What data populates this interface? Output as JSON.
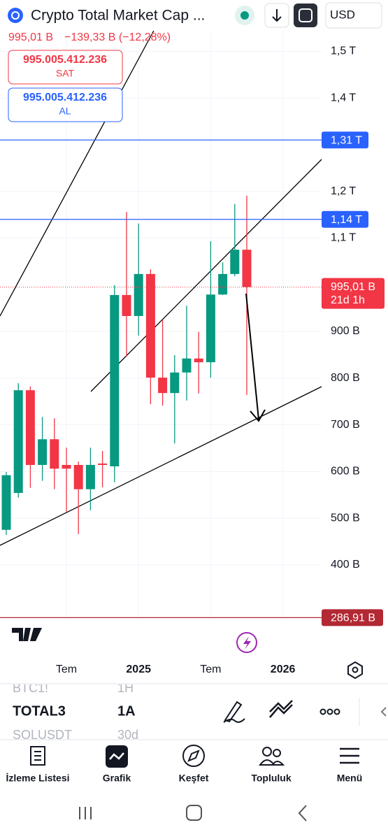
{
  "header": {
    "title": "Crypto Total Market Cap ...",
    "price": "995,01 B",
    "change": "−139,33 B (−12,28%)",
    "sell_price": "995.005.412.236",
    "sell_label": "SAT",
    "buy_price": "995.005.412.236",
    "buy_label": "AL",
    "currency": "USD"
  },
  "chart_data": {
    "type": "candlestick",
    "categories": [
      null,
      null,
      null,
      null,
      null,
      "Tem",
      null,
      null,
      null,
      null,
      null,
      "2025",
      null,
      null,
      null,
      null,
      null,
      "Tem",
      null,
      null,
      null,
      null,
      null,
      "2026"
    ],
    "open": [
      475,
      554,
      774,
      614,
      669,
      614,
      614,
      562,
      617,
      611,
      978,
      933,
      1023,
      801,
      768,
      812,
      842,
      834,
      979,
      1023,
      1075,
      null,
      null,
      null
    ],
    "high": [
      599,
      789,
      782,
      717,
      714,
      651,
      621,
      651,
      644,
      999,
      1156,
      1131,
      1033,
      924,
      849,
      955,
      899,
      1093,
      1048,
      1173,
      1191,
      null,
      null,
      null
    ],
    "low": [
      464,
      544,
      565,
      580,
      562,
      514,
      466,
      517,
      566,
      577,
      846,
      891,
      744,
      741,
      660,
      752,
      767,
      801,
      978,
      1018,
      764,
      null,
      null,
      null
    ],
    "close": [
      592,
      774,
      614,
      669,
      606,
      606,
      562,
      614,
      614,
      978,
      933,
      1023,
      801,
      768,
      812,
      842,
      834,
      979,
      1023,
      1075,
      995.01,
      null,
      null,
      null
    ],
    "up_color": "#089981",
    "down_color": "#f23645",
    "ylim": [
      283,
      1550
    ],
    "yticks": [
      {
        "value": 400,
        "label": "400 B"
      },
      {
        "value": 500,
        "label": "500 B"
      },
      {
        "value": 600,
        "label": "600 B"
      },
      {
        "value": 700,
        "label": "700 B"
      },
      {
        "value": 800,
        "label": "800 B"
      },
      {
        "value": 900,
        "label": "900 B"
      },
      {
        "value": 1100,
        "label": "1,1 T"
      },
      {
        "value": 1200,
        "label": "1,2 T"
      },
      {
        "value": 1400,
        "label": "1,4 T"
      },
      {
        "value": 1500,
        "label": "1,5 T"
      }
    ],
    "grid": true,
    "price_lines": [
      {
        "value": 1310,
        "label": "1,31 T",
        "color": "#2962ff"
      },
      {
        "value": 1140,
        "label": "1,14 T",
        "color": "#2962ff"
      },
      {
        "value": 286.91,
        "label": "286,91 B",
        "color": "#b22833"
      }
    ],
    "last_price": {
      "value": 995.01,
      "label": "995,01 B"
    },
    "countdown": "21d 1h"
  },
  "toolbar": {
    "prev_symbol": "BTC1!",
    "prev_interval": "1H",
    "symbol": "TOTAL3",
    "interval": "1A",
    "next_symbol": "SOLUSDT",
    "next_interval": "30d"
  },
  "nav": [
    "İzleme Listesi",
    "Grafik",
    "Keşfet",
    "Topluluk",
    "Menü"
  ]
}
